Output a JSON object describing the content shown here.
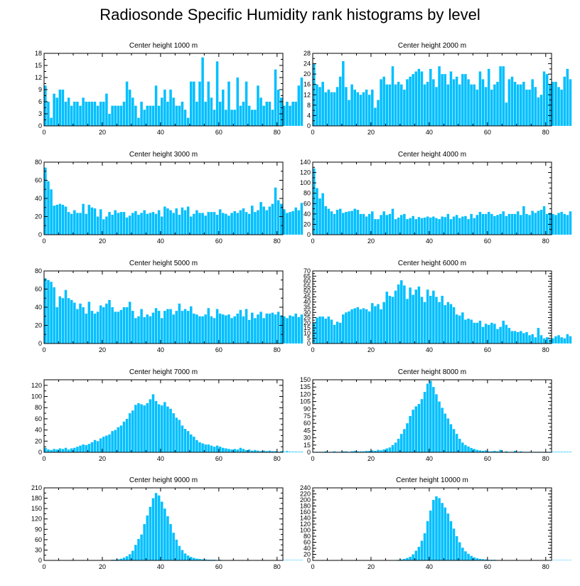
{
  "title": "Radiosonde Specific Humidity rank histograms by level",
  "colors": {
    "bar": "#00BFFF",
    "frame": "#000000"
  },
  "chart_data": [
    {
      "type": "bar",
      "title": "Center height 1000 m",
      "xlim": [
        0,
        82
      ],
      "xticks": [
        0,
        20,
        40,
        60,
        80
      ],
      "ylim": [
        0,
        18
      ],
      "yticks": [
        0,
        3,
        6,
        9,
        12,
        15,
        18
      ],
      "values": [
        10,
        6,
        2,
        8,
        7,
        9,
        9,
        6,
        7,
        5,
        6,
        6,
        5,
        7,
        6,
        6,
        6,
        6,
        5,
        6,
        6,
        8,
        3,
        5,
        5,
        5,
        5,
        6,
        11,
        9,
        7,
        5,
        2,
        6,
        4,
        5,
        5,
        5,
        10,
        5,
        7,
        9,
        6,
        9,
        7,
        5,
        5,
        6,
        4,
        2,
        11,
        11,
        6,
        11,
        17,
        6,
        11,
        7,
        4,
        16,
        6,
        9,
        4,
        11,
        4,
        4,
        12,
        5,
        6,
        11,
        5,
        4,
        4,
        10,
        7,
        5,
        6,
        6,
        4,
        14,
        9,
        7,
        5,
        6,
        5,
        6,
        6,
        10,
        12
      ]
    },
    {
      "type": "bar",
      "title": "Center height 2000 m",
      "xlim": [
        0,
        82
      ],
      "xticks": [
        0,
        20,
        40,
        60,
        80
      ],
      "ylim": [
        0,
        28
      ],
      "yticks": [
        0,
        4,
        8,
        12,
        16,
        20,
        24,
        28
      ],
      "values": [
        24,
        16,
        15,
        17,
        13,
        14,
        13,
        13,
        15,
        19,
        25,
        15,
        10,
        16,
        14,
        13,
        12,
        13,
        14,
        12,
        14,
        7,
        10,
        18,
        19,
        16,
        16,
        23,
        16,
        17,
        16,
        14,
        18,
        19,
        20,
        21,
        22,
        21,
        16,
        17,
        22,
        18,
        15,
        23,
        20,
        20,
        16,
        21,
        18,
        19,
        16,
        20,
        20,
        18,
        16,
        16,
        14,
        21,
        18,
        15,
        22,
        14,
        16,
        17,
        23,
        23,
        9,
        18,
        19,
        17,
        16,
        16,
        17,
        14,
        14,
        18,
        15,
        11,
        12,
        21,
        20,
        16,
        17,
        17,
        15,
        14,
        19,
        22,
        18
      ]
    },
    {
      "type": "bar",
      "title": "Center height 3000 m",
      "xlim": [
        0,
        82
      ],
      "xticks": [
        0,
        20,
        40,
        60,
        80
      ],
      "ylim": [
        0,
        80
      ],
      "yticks": [
        0,
        20,
        40,
        60,
        80
      ],
      "values": [
        74,
        59,
        50,
        32,
        33,
        34,
        33,
        31,
        25,
        23,
        27,
        24,
        24,
        34,
        23,
        33,
        30,
        29,
        20,
        28,
        17,
        20,
        25,
        22,
        27,
        24,
        25,
        25,
        19,
        21,
        24,
        26,
        22,
        24,
        27,
        23,
        24,
        25,
        23,
        27,
        20,
        31,
        29,
        27,
        24,
        29,
        22,
        30,
        27,
        31,
        20,
        23,
        27,
        24,
        24,
        21,
        25,
        25,
        25,
        22,
        28,
        24,
        23,
        21,
        24,
        26,
        24,
        27,
        29,
        25,
        23,
        32,
        25,
        27,
        36,
        31,
        27,
        31,
        34,
        52,
        38,
        34,
        28,
        24,
        25,
        26,
        30,
        27,
        35
      ]
    },
    {
      "type": "bar",
      "title": "Center height 4000 m",
      "xlim": [
        0,
        82
      ],
      "xticks": [
        0,
        20,
        40,
        60,
        80
      ],
      "ylim": [
        0,
        140
      ],
      "yticks": [
        0,
        20,
        40,
        60,
        80,
        100,
        120,
        140
      ],
      "values": [
        128,
        90,
        70,
        80,
        55,
        50,
        45,
        40,
        48,
        50,
        42,
        44,
        45,
        46,
        50,
        48,
        40,
        40,
        35,
        40,
        45,
        30,
        30,
        38,
        45,
        38,
        40,
        50,
        30,
        33,
        38,
        40,
        30,
        32,
        36,
        30,
        34,
        32,
        33,
        35,
        33,
        35,
        32,
        30,
        35,
        34,
        40,
        30,
        35,
        38,
        32,
        35,
        36,
        30,
        40,
        32,
        38,
        44,
        40,
        40,
        44,
        40,
        36,
        38,
        40,
        45,
        36,
        40,
        40,
        40,
        45,
        38,
        55,
        40,
        38,
        46,
        42,
        46,
        48,
        55,
        40,
        42,
        40,
        38,
        42,
        44,
        40,
        38,
        45
      ]
    },
    {
      "type": "bar",
      "title": "Center height 5000 m",
      "xlim": [
        0,
        82
      ],
      "xticks": [
        0,
        20,
        40,
        60,
        80
      ],
      "ylim": [
        0,
        80
      ],
      "yticks": [
        0,
        20,
        40,
        60,
        80
      ],
      "values": [
        72,
        70,
        68,
        62,
        40,
        52,
        50,
        59,
        50,
        48,
        45,
        38,
        44,
        40,
        33,
        46,
        36,
        33,
        35,
        42,
        40,
        44,
        48,
        40,
        35,
        35,
        37,
        40,
        40,
        46,
        36,
        28,
        30,
        38,
        29,
        32,
        30,
        34,
        39,
        36,
        28,
        36,
        38,
        38,
        32,
        36,
        44,
        36,
        38,
        36,
        41,
        33,
        32,
        30,
        30,
        32,
        39,
        30,
        28,
        38,
        33,
        32,
        31,
        32,
        28,
        30,
        33,
        37,
        30,
        38,
        26,
        34,
        28,
        32,
        35,
        28,
        33,
        33,
        34,
        32,
        35,
        31,
        30,
        28,
        31,
        30,
        33,
        29,
        32
      ]
    },
    {
      "type": "bar",
      "title": "Center height 6000 m",
      "xlim": [
        0,
        82
      ],
      "xticks": [
        0,
        20,
        40,
        60,
        80
      ],
      "ylim": [
        0,
        70
      ],
      "yticks": [
        0,
        5,
        10,
        15,
        20,
        25,
        30,
        35,
        40,
        45,
        50,
        55,
        60,
        65,
        70
      ],
      "values": [
        20,
        25,
        26,
        26,
        24,
        26,
        23,
        18,
        21,
        20,
        28,
        30,
        31,
        33,
        34,
        35,
        33,
        34,
        33,
        31,
        39,
        36,
        38,
        33,
        40,
        50,
        46,
        45,
        51,
        57,
        61,
        56,
        43,
        54,
        47,
        52,
        55,
        45,
        40,
        52,
        46,
        51,
        45,
        40,
        46,
        37,
        40,
        38,
        35,
        28,
        27,
        30,
        23,
        24,
        23,
        20,
        20,
        22,
        16,
        19,
        18,
        20,
        19,
        14,
        16,
        22,
        18,
        15,
        12,
        12,
        11,
        12,
        10,
        11,
        8,
        9,
        6,
        15,
        8,
        5,
        6,
        4,
        5,
        7,
        8,
        6,
        5,
        9,
        7
      ]
    },
    {
      "type": "bar",
      "title": "Center height 7000 m",
      "xlim": [
        0,
        82
      ],
      "xticks": [
        0,
        20,
        40,
        60,
        80
      ],
      "ylim": [
        0,
        130
      ],
      "yticks": [
        0,
        20,
        40,
        60,
        80,
        100,
        120
      ],
      "values": [
        8,
        5,
        4,
        6,
        5,
        7,
        6,
        8,
        5,
        7,
        8,
        10,
        12,
        14,
        13,
        15,
        18,
        22,
        20,
        25,
        28,
        30,
        32,
        38,
        40,
        45,
        48,
        55,
        60,
        70,
        75,
        85,
        88,
        86,
        84,
        88,
        95,
        104,
        92,
        86,
        84,
        90,
        82,
        78,
        70,
        62,
        58,
        48,
        42,
        38,
        32,
        28,
        22,
        18,
        16,
        14,
        14,
        12,
        10,
        12,
        10,
        8,
        7,
        6,
        5,
        6,
        5,
        8,
        6,
        4,
        5,
        3,
        4,
        3,
        2,
        3,
        2,
        3,
        2,
        2,
        1,
        2,
        1,
        2,
        1,
        1,
        1,
        1,
        1
      ]
    },
    {
      "type": "bar",
      "title": "Center height 8000 m",
      "xlim": [
        0,
        82
      ],
      "xticks": [
        0,
        20,
        40,
        60,
        80
      ],
      "ylim": [
        0,
        150
      ],
      "yticks": [
        0,
        15,
        30,
        45,
        60,
        75,
        90,
        105,
        120,
        135,
        150
      ],
      "values": [
        1,
        1,
        1,
        1,
        2,
        1,
        1,
        2,
        1,
        1,
        2,
        2,
        1,
        2,
        3,
        2,
        2,
        2,
        3,
        3,
        4,
        3,
        5,
        4,
        6,
        8,
        10,
        15,
        20,
        28,
        38,
        48,
        60,
        75,
        88,
        95,
        100,
        110,
        125,
        142,
        148,
        135,
        120,
        105,
        92,
        80,
        70,
        58,
        48,
        38,
        28,
        20,
        15,
        12,
        9,
        7,
        5,
        4,
        3,
        4,
        2,
        2,
        3,
        2,
        5,
        1,
        2,
        1,
        1,
        3,
        1,
        2,
        1,
        1,
        1,
        1,
        1,
        1,
        1,
        1,
        1,
        1,
        1,
        1,
        1,
        1,
        1,
        1,
        1
      ]
    },
    {
      "type": "bar",
      "title": "Center height 9000 m",
      "xlim": [
        0,
        82
      ],
      "xticks": [
        0,
        20,
        40,
        60,
        80
      ],
      "ylim": [
        0,
        210
      ],
      "yticks": [
        0,
        30,
        60,
        90,
        120,
        150,
        180,
        210
      ],
      "values": [
        1,
        1,
        1,
        1,
        1,
        1,
        1,
        1,
        1,
        1,
        1,
        1,
        1,
        1,
        1,
        1,
        1,
        1,
        1,
        1,
        1,
        1,
        1,
        2,
        2,
        3,
        5,
        8,
        12,
        18,
        28,
        45,
        62,
        75,
        105,
        130,
        155,
        180,
        195,
        188,
        170,
        150,
        128,
        105,
        80,
        60,
        42,
        30,
        20,
        14,
        10,
        7,
        5,
        4,
        3,
        3,
        2,
        2,
        2,
        1,
        2,
        1,
        1,
        1,
        1,
        1,
        1,
        1,
        1,
        1,
        1,
        1,
        1,
        1,
        1,
        1,
        1,
        1,
        1,
        1,
        1,
        1,
        1,
        1,
        1,
        1,
        1,
        1,
        1
      ]
    },
    {
      "type": "bar",
      "title": "Center height 10000 m",
      "xlim": [
        0,
        82
      ],
      "xticks": [
        0,
        20,
        40,
        60,
        80
      ],
      "ylim": [
        0,
        240
      ],
      "yticks": [
        0,
        20,
        40,
        60,
        80,
        100,
        120,
        140,
        160,
        180,
        200,
        220,
        240
      ],
      "values": [
        1,
        1,
        1,
        1,
        1,
        1,
        1,
        1,
        1,
        1,
        1,
        1,
        1,
        1,
        1,
        1,
        1,
        1,
        1,
        1,
        1,
        1,
        1,
        1,
        1,
        1,
        1,
        1,
        1,
        2,
        3,
        5,
        8,
        12,
        20,
        32,
        45,
        65,
        90,
        130,
        165,
        200,
        212,
        206,
        190,
        175,
        155,
        130,
        105,
        80,
        60,
        42,
        30,
        22,
        15,
        10,
        7,
        5,
        4,
        3,
        2,
        2,
        2,
        1,
        1,
        1,
        1,
        1,
        1,
        1,
        1,
        1,
        1,
        1,
        1,
        1,
        1,
        1,
        1,
        1,
        1,
        1,
        1,
        1,
        1,
        1,
        1,
        1,
        1
      ]
    }
  ]
}
